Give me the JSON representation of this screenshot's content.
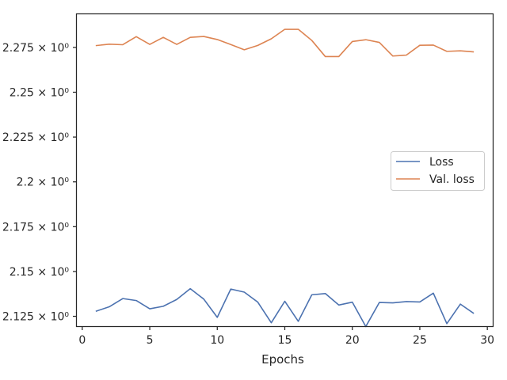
{
  "chart_data": {
    "type": "line",
    "title": "",
    "xlabel": "Epochs",
    "ylabel": "",
    "xlim": [
      -0.4,
      30.4
    ],
    "ylim": [
      2.1195,
      2.2935
    ],
    "x_ticks": [
      0,
      5,
      10,
      15,
      20,
      25,
      30
    ],
    "y_ticks": [
      {
        "value": 2.125,
        "label": "2.125 × 10⁰"
      },
      {
        "value": 2.15,
        "label": "2.15 × 10⁰"
      },
      {
        "value": 2.175,
        "label": "2.175 × 10⁰"
      },
      {
        "value": 2.2,
        "label": "2.2 × 10⁰"
      },
      {
        "value": 2.225,
        "label": "2.225 × 10⁰"
      },
      {
        "value": 2.25,
        "label": "2.25 × 10⁰"
      },
      {
        "value": 2.275,
        "label": "2.275 × 10⁰"
      }
    ],
    "grid": false,
    "legend_position": "center-right",
    "x": [
      1,
      2,
      3,
      4,
      5,
      6,
      7,
      8,
      9,
      10,
      11,
      12,
      13,
      14,
      15,
      16,
      17,
      18,
      19,
      20,
      21,
      22,
      23,
      24,
      25,
      26,
      27,
      28,
      29
    ],
    "series": [
      {
        "name": "Loss",
        "color": "#4c72b0",
        "values": [
          2.1278,
          2.1303,
          2.1349,
          2.1338,
          2.1292,
          2.1306,
          2.1344,
          2.1404,
          2.1346,
          2.1244,
          2.1402,
          2.1385,
          2.1329,
          2.1214,
          2.1334,
          2.1222,
          2.137,
          2.1377,
          2.1313,
          2.1329,
          2.1193,
          2.1327,
          2.1325,
          2.1332,
          2.133,
          2.1379,
          2.1209,
          2.1318,
          2.1266
        ]
      },
      {
        "name": "Val. loss",
        "color": "#dd8452",
        "values": [
          2.276,
          2.2768,
          2.2765,
          2.281,
          2.2767,
          2.2806,
          2.2767,
          2.2806,
          2.2811,
          2.2794,
          2.2766,
          2.2737,
          2.2761,
          2.2798,
          2.2851,
          2.2851,
          2.2789,
          2.2699,
          2.2699,
          2.2783,
          2.2793,
          2.2778,
          2.2702,
          2.2707,
          2.2762,
          2.2763,
          2.2728,
          2.2731,
          2.2725
        ]
      }
    ]
  }
}
